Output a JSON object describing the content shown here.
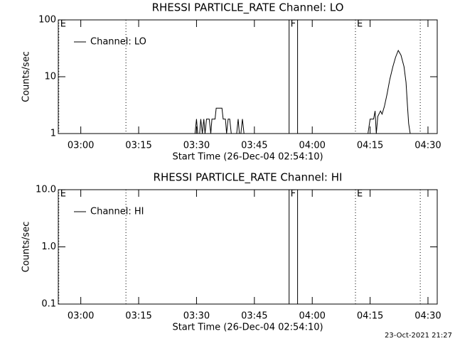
{
  "chart_data": [
    {
      "type": "line",
      "title": "RHESSI PARTICLE_RATE Channel: LO",
      "xlabel": "Start Time (26-Dec-04 02:54:10)",
      "ylabel": "Counts/sec",
      "xlim": [
        174.1667,
        272.4
      ],
      "xticks": [
        {
          "value": 180,
          "label": "03:00"
        },
        {
          "value": 195,
          "label": "03:15"
        },
        {
          "value": 210,
          "label": "03:30"
        },
        {
          "value": 225,
          "label": "03:45"
        },
        {
          "value": 240,
          "label": "04:00"
        },
        {
          "value": 255,
          "label": "04:15"
        },
        {
          "value": 270,
          "label": "04:30"
        }
      ],
      "ylim": [
        1,
        100
      ],
      "yticks": [
        1,
        10,
        100
      ],
      "log_y": true,
      "legend": "upper left",
      "markers": [
        {
          "x": 174.3,
          "label": "E",
          "style": "dotted"
        },
        {
          "x": 191.7,
          "style": "dotted"
        },
        {
          "x": 234.0,
          "label": "F",
          "style": "solid"
        },
        {
          "x": 236.2,
          "style": "solid"
        },
        {
          "x": 251.2,
          "label": "E",
          "style": "dotted"
        },
        {
          "x": 268.0,
          "style": "dotted"
        }
      ],
      "series": [
        {
          "name": "Channel: LO",
          "color": "#000000",
          "x": [
            209.6,
            210.0,
            210.3,
            210.8,
            211.1,
            211.5,
            211.9,
            212.2,
            212.6,
            213.3,
            213.7,
            214.0,
            214.8,
            215.1,
            216.6,
            216.9,
            217.5,
            217.8,
            218.2,
            218.6,
            219.0,
            220.4,
            220.8,
            221.1,
            221.5,
            221.9,
            222.3,
            238.0,
            254.45,
            255.0,
            255.9,
            256.3,
            256.6,
            257.0,
            257.7,
            258.1,
            258.7,
            259.4,
            260.1,
            260.9,
            261.6,
            262.3,
            263.0,
            263.8,
            264.3,
            264.7,
            265.0,
            265.4
          ],
          "values": [
            1,
            1.8,
            1,
            1,
            1.8,
            1,
            1.8,
            1,
            1.8,
            1.8,
            1,
            1.8,
            1.8,
            2.8,
            2.8,
            1.8,
            1.8,
            1,
            1.8,
            1.8,
            1,
            1,
            1.8,
            1,
            1,
            1.8,
            1,
            null,
            1,
            1.8,
            1.8,
            2.5,
            1,
            2,
            2.5,
            2.2,
            3,
            5,
            9,
            15,
            22,
            29,
            24,
            15,
            8,
            3,
            1.5,
            1
          ]
        }
      ]
    },
    {
      "type": "line",
      "title": "RHESSI PARTICLE_RATE Channel: HI",
      "xlabel": "Start Time (26-Dec-04 02:54:10)",
      "ylabel": "Counts/sec",
      "xlim": [
        174.1667,
        272.4
      ],
      "xticks": [
        {
          "value": 180,
          "label": "03:00"
        },
        {
          "value": 195,
          "label": "03:15"
        },
        {
          "value": 210,
          "label": "03:30"
        },
        {
          "value": 225,
          "label": "03:45"
        },
        {
          "value": 240,
          "label": "04:00"
        },
        {
          "value": 255,
          "label": "04:15"
        },
        {
          "value": 270,
          "label": "04:30"
        }
      ],
      "ylim": [
        0.1,
        10
      ],
      "yticks": [
        0.1,
        {
          "value": 1,
          "label": "1.0"
        },
        {
          "value": 10,
          "label": "10.0"
        }
      ],
      "log_y": true,
      "legend": "upper left",
      "markers": [
        {
          "x": 174.3,
          "label": "E",
          "style": "dotted"
        },
        {
          "x": 191.7,
          "style": "dotted"
        },
        {
          "x": 234.0,
          "label": "F",
          "style": "solid"
        },
        {
          "x": 236.2,
          "style": "solid"
        },
        {
          "x": 251.2,
          "label": "E",
          "style": "dotted"
        },
        {
          "x": 268.0,
          "style": "dotted"
        }
      ],
      "series": [
        {
          "name": "Channel: HI",
          "color": "#000000",
          "x": [],
          "values": []
        }
      ]
    }
  ],
  "footer": "23-Oct-2021 21:27"
}
